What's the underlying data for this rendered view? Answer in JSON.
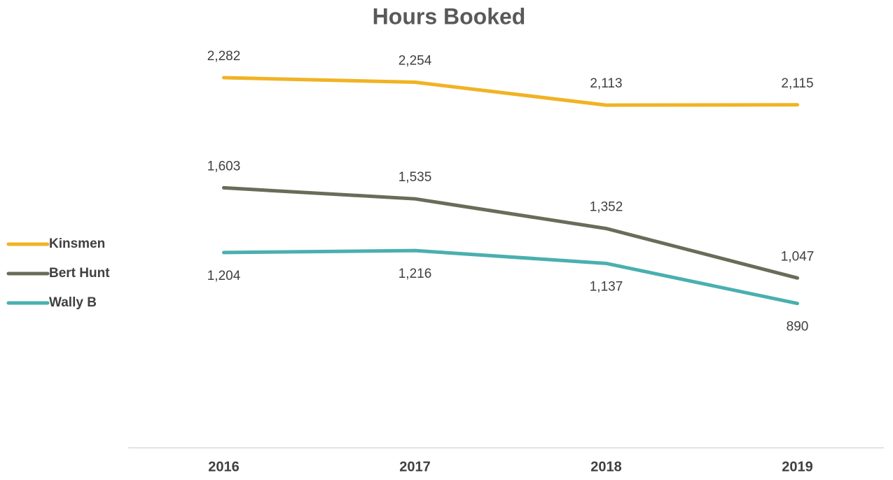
{
  "chart_data": {
    "type": "line",
    "title": "Hours Booked",
    "categories": [
      "2016",
      "2017",
      "2018",
      "2019"
    ],
    "series": [
      {
        "name": "Kinsmen",
        "color": "#f0b323",
        "values": [
          2282,
          2254,
          2113,
          2115
        ],
        "value_labels": [
          "2,282",
          "2,254",
          "2,113",
          "2,115"
        ],
        "label_position": "above"
      },
      {
        "name": "Bert Hunt",
        "color": "#6b6b5a",
        "values": [
          1603,
          1535,
          1352,
          1047
        ],
        "value_labels": [
          "1,603",
          "1,535",
          "1,352",
          "1,047"
        ],
        "label_position": "above"
      },
      {
        "name": "Wally B",
        "color": "#4aafaf",
        "values": [
          1204,
          1216,
          1137,
          890
        ],
        "value_labels": [
          "1,204",
          "1,216",
          "1,137",
          "890"
        ],
        "label_position": "below"
      }
    ],
    "ylim": [
      0,
      2500
    ],
    "legend": "left"
  }
}
